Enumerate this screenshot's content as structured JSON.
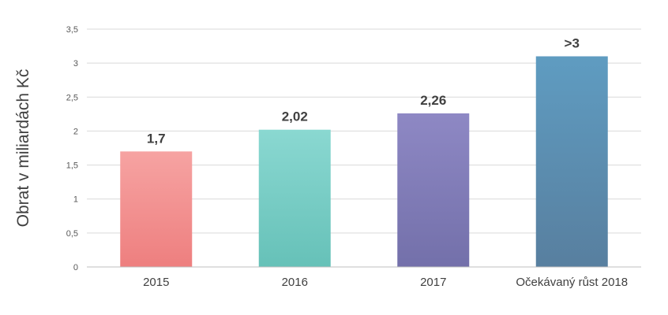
{
  "chart_data": {
    "type": "bar",
    "title": "",
    "xlabel": "",
    "ylabel": "Obrat v miliardách Kč",
    "categories": [
      "2015",
      "2016",
      "2017",
      "Očekávaný růst 2018"
    ],
    "values": [
      1.7,
      2.02,
      2.26,
      3.1
    ],
    "data_labels": [
      "1,7",
      "2,02",
      "2,26",
      ">3"
    ],
    "ylim": [
      0,
      3.5
    ],
    "yticks": [
      0,
      0.5,
      1,
      1.5,
      2,
      2.5,
      3,
      3.5
    ],
    "ytick_labels": [
      "0",
      "0,5",
      "1",
      "1,5",
      "2",
      "2,5",
      "3",
      "3,5"
    ],
    "grid": true,
    "legend": "none",
    "bar_colors": [
      [
        "#f6a3a2",
        "#ee7f7f"
      ],
      [
        "#8ad8d1",
        "#66c1b8"
      ],
      [
        "#8e88c4",
        "#7370aa"
      ],
      [
        "#5f9cc1",
        "#587f9f"
      ]
    ],
    "grid_color": "#d9d9d9",
    "axis_color": "#bfbfbf"
  }
}
